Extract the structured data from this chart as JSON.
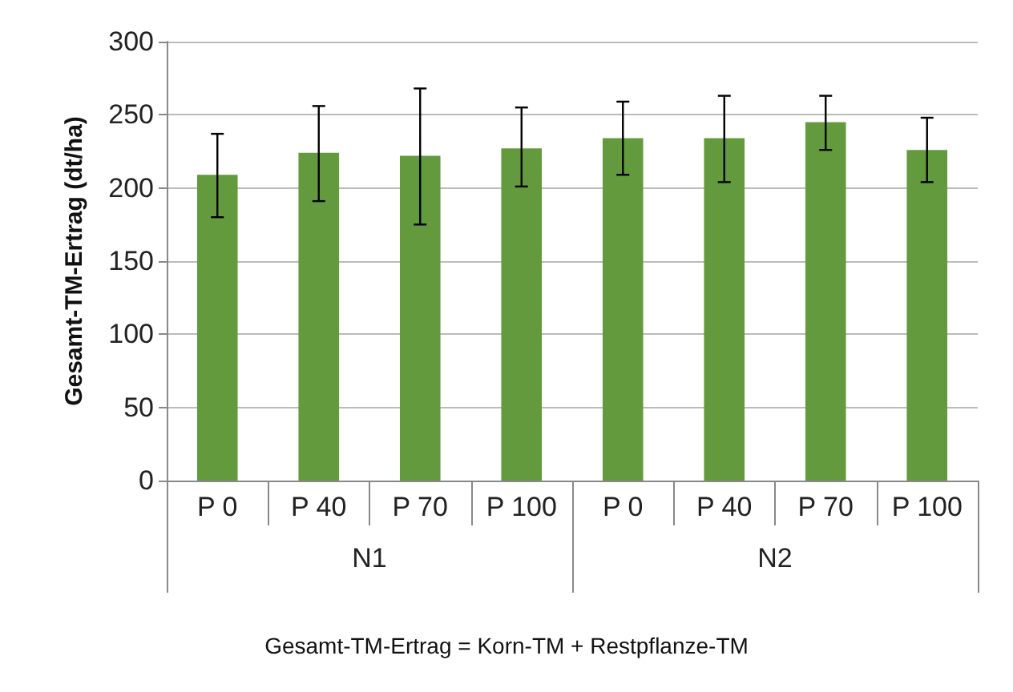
{
  "chart_data": {
    "type": "bar",
    "ylabel": "Gesamt-TM-Ertrag (dt/ha)",
    "categories": [
      "P 0",
      "P 40",
      "P 70",
      "P 100",
      "P 0",
      "P 40",
      "P 70",
      "P 100"
    ],
    "values": [
      209,
      224,
      222,
      227,
      234,
      234,
      245,
      226
    ],
    "errors": [
      [
        180,
        237
      ],
      [
        191,
        256
      ],
      [
        175,
        268
      ],
      [
        201,
        255
      ],
      [
        209,
        259
      ],
      [
        204,
        263
      ],
      [
        226,
        263
      ],
      [
        204,
        248
      ]
    ],
    "color": "#649a3e",
    "ylim": [
      0,
      300
    ],
    "yticks": [
      0,
      50,
      100,
      150,
      200,
      250,
      300
    ],
    "grid": "y",
    "annotations": [
      "N1",
      "N2",
      "Gesamt-TM-Ertrag = Korn-TM + Restpflanze-TM"
    ]
  }
}
